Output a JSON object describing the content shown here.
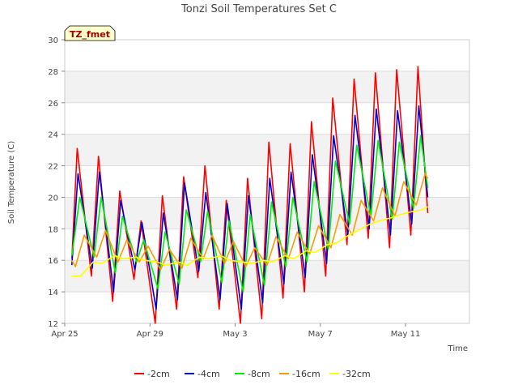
{
  "chart_data": {
    "type": "line",
    "title": "Tonzi Soil Temperatures Set C",
    "badge": "TZ_fmet",
    "xlabel": "Time",
    "ylabel": "Soil Temperature (C)",
    "ylim": [
      12,
      30
    ],
    "yticks": [
      12,
      14,
      16,
      18,
      20,
      22,
      24,
      26,
      28,
      30
    ],
    "xlim": [
      "2024-04-25",
      "2024-05-14"
    ],
    "xticks": [
      {
        "date": "2024-04-25",
        "label": "Apr 25"
      },
      {
        "date": "2024-04-29",
        "label": "Apr 29"
      },
      {
        "date": "2024-05-03",
        "label": "May 3"
      },
      {
        "date": "2024-05-07",
        "label": "May 7"
      },
      {
        "date": "2024-05-11",
        "label": "May 11"
      }
    ],
    "grid": "horizontal bands",
    "legend_position": "bottom",
    "series": [
      {
        "name": "-2cm",
        "color": "#ff0000",
        "points": [
          [
            "2024-04-25T08:00",
            16.1
          ],
          [
            "2024-04-25T14:00",
            23.1
          ],
          [
            "2024-04-26T06:00",
            15.0
          ],
          [
            "2024-04-26T14:00",
            22.6
          ],
          [
            "2024-04-27T06:00",
            13.4
          ],
          [
            "2024-04-27T14:00",
            20.4
          ],
          [
            "2024-04-28T06:00",
            14.8
          ],
          [
            "2024-04-28T14:00",
            18.5
          ],
          [
            "2024-04-29T06:00",
            12.0
          ],
          [
            "2024-04-29T14:00",
            20.1
          ],
          [
            "2024-04-30T06:00",
            12.9
          ],
          [
            "2024-04-30T14:00",
            21.3
          ],
          [
            "2024-05-01T06:00",
            14.9
          ],
          [
            "2024-05-01T14:00",
            22.0
          ],
          [
            "2024-05-02T06:00",
            12.9
          ],
          [
            "2024-05-02T14:00",
            19.8
          ],
          [
            "2024-05-03T06:00",
            12.0
          ],
          [
            "2024-05-03T14:00",
            21.2
          ],
          [
            "2024-05-04T06:00",
            12.3
          ],
          [
            "2024-05-04T14:00",
            23.5
          ],
          [
            "2024-05-05T06:00",
            13.6
          ],
          [
            "2024-05-05T14:00",
            23.4
          ],
          [
            "2024-05-06T06:00",
            14.0
          ],
          [
            "2024-05-06T14:00",
            24.8
          ],
          [
            "2024-05-07T06:00",
            15.0
          ],
          [
            "2024-05-07T14:00",
            26.3
          ],
          [
            "2024-05-08T06:00",
            17.0
          ],
          [
            "2024-05-08T14:00",
            27.5
          ],
          [
            "2024-05-09T06:00",
            17.4
          ],
          [
            "2024-05-09T14:00",
            27.9
          ],
          [
            "2024-05-10T06:00",
            16.8
          ],
          [
            "2024-05-10T14:00",
            28.1
          ],
          [
            "2024-05-11T06:00",
            17.6
          ],
          [
            "2024-05-11T14:00",
            28.3
          ],
          [
            "2024-05-12T01:00",
            19.0
          ]
        ]
      },
      {
        "name": "-4cm",
        "color": "#0000cc",
        "points": [
          [
            "2024-04-25T08:00",
            15.7
          ],
          [
            "2024-04-25T15:00",
            21.5
          ],
          [
            "2024-04-26T07:00",
            15.5
          ],
          [
            "2024-04-26T15:00",
            21.6
          ],
          [
            "2024-04-27T07:00",
            14.0
          ],
          [
            "2024-04-27T15:00",
            19.8
          ],
          [
            "2024-04-28T07:00",
            15.4
          ],
          [
            "2024-04-28T15:00",
            18.4
          ],
          [
            "2024-04-29T07:00",
            12.9
          ],
          [
            "2024-04-29T15:00",
            19.0
          ],
          [
            "2024-04-30T07:00",
            13.5
          ],
          [
            "2024-04-30T15:00",
            20.9
          ],
          [
            "2024-05-01T07:00",
            15.3
          ],
          [
            "2024-05-01T15:00",
            20.3
          ],
          [
            "2024-05-02T07:00",
            13.5
          ],
          [
            "2024-05-02T15:00",
            19.6
          ],
          [
            "2024-05-03T07:00",
            12.9
          ],
          [
            "2024-05-03T15:00",
            20.1
          ],
          [
            "2024-05-04T07:00",
            13.3
          ],
          [
            "2024-05-04T15:00",
            21.2
          ],
          [
            "2024-05-05T07:00",
            14.5
          ],
          [
            "2024-05-05T15:00",
            21.6
          ],
          [
            "2024-05-06T07:00",
            14.9
          ],
          [
            "2024-05-06T15:00",
            22.7
          ],
          [
            "2024-05-07T07:00",
            15.8
          ],
          [
            "2024-05-07T15:00",
            23.9
          ],
          [
            "2024-05-08T07:00",
            17.6
          ],
          [
            "2024-05-08T15:00",
            25.2
          ],
          [
            "2024-05-09T07:00",
            18.0
          ],
          [
            "2024-05-09T15:00",
            25.6
          ],
          [
            "2024-05-10T07:00",
            17.6
          ],
          [
            "2024-05-10T15:00",
            25.5
          ],
          [
            "2024-05-11T07:00",
            18.3
          ],
          [
            "2024-05-11T15:00",
            25.8
          ],
          [
            "2024-05-12T01:00",
            20.0
          ]
        ]
      },
      {
        "name": "-8cm",
        "color": "#00ee00",
        "points": [
          [
            "2024-04-25T08:00",
            16.3
          ],
          [
            "2024-04-25T17:00",
            20.0
          ],
          [
            "2024-04-26T09:00",
            16.2
          ],
          [
            "2024-04-26T17:00",
            20.0
          ],
          [
            "2024-04-27T09:00",
            15.2
          ],
          [
            "2024-04-27T17:00",
            18.8
          ],
          [
            "2024-04-28T09:00",
            15.9
          ],
          [
            "2024-04-28T17:00",
            17.3
          ],
          [
            "2024-04-29T09:00",
            14.2
          ],
          [
            "2024-04-29T17:00",
            17.8
          ],
          [
            "2024-04-30T09:00",
            14.5
          ],
          [
            "2024-04-30T17:00",
            19.2
          ],
          [
            "2024-05-01T09:00",
            15.9
          ],
          [
            "2024-05-01T17:00",
            19.1
          ],
          [
            "2024-05-02T09:00",
            14.6
          ],
          [
            "2024-05-02T17:00",
            18.5
          ],
          [
            "2024-05-03T09:00",
            14.0
          ],
          [
            "2024-05-03T17:00",
            18.9
          ],
          [
            "2024-05-04T09:00",
            14.4
          ],
          [
            "2024-05-04T17:00",
            19.7
          ],
          [
            "2024-05-05T09:00",
            15.6
          ],
          [
            "2024-05-05T17:00",
            20.0
          ],
          [
            "2024-05-06T09:00",
            15.9
          ],
          [
            "2024-05-06T17:00",
            21.0
          ],
          [
            "2024-05-07T09:00",
            16.7
          ],
          [
            "2024-05-07T17:00",
            22.3
          ],
          [
            "2024-05-08T09:00",
            18.3
          ],
          [
            "2024-05-08T17:00",
            23.3
          ],
          [
            "2024-05-09T09:00",
            18.8
          ],
          [
            "2024-05-09T17:00",
            23.6
          ],
          [
            "2024-05-10T09:00",
            18.6
          ],
          [
            "2024-05-10T17:00",
            23.5
          ],
          [
            "2024-05-11T09:00",
            19.3
          ],
          [
            "2024-05-11T17:00",
            23.9
          ],
          [
            "2024-05-12T01:00",
            20.6
          ]
        ]
      },
      {
        "name": "-16cm",
        "color": "#ff9900",
        "points": [
          [
            "2024-04-25T08:00",
            16.0
          ],
          [
            "2024-04-25T12:00",
            15.6
          ],
          [
            "2024-04-25T22:00",
            17.6
          ],
          [
            "2024-04-26T12:00",
            16.2
          ],
          [
            "2024-04-26T22:00",
            17.9
          ],
          [
            "2024-04-27T12:00",
            15.9
          ],
          [
            "2024-04-27T22:00",
            17.3
          ],
          [
            "2024-04-28T12:00",
            15.9
          ],
          [
            "2024-04-28T22:00",
            16.9
          ],
          [
            "2024-04-29T12:00",
            15.4
          ],
          [
            "2024-04-29T22:00",
            16.7
          ],
          [
            "2024-04-30T12:00",
            15.5
          ],
          [
            "2024-04-30T22:00",
            17.4
          ],
          [
            "2024-05-01T12:00",
            16.1
          ],
          [
            "2024-05-01T22:00",
            17.6
          ],
          [
            "2024-05-02T12:00",
            15.8
          ],
          [
            "2024-05-02T22:00",
            17.2
          ],
          [
            "2024-05-03T12:00",
            15.6
          ],
          [
            "2024-05-03T22:00",
            16.8
          ],
          [
            "2024-05-04T12:00",
            15.7
          ],
          [
            "2024-05-04T22:00",
            17.5
          ],
          [
            "2024-05-05T12:00",
            16.1
          ],
          [
            "2024-05-05T22:00",
            17.8
          ],
          [
            "2024-05-06T12:00",
            16.4
          ],
          [
            "2024-05-06T22:00",
            18.2
          ],
          [
            "2024-05-07T12:00",
            16.8
          ],
          [
            "2024-05-07T22:00",
            18.9
          ],
          [
            "2024-05-08T12:00",
            17.6
          ],
          [
            "2024-05-08T22:00",
            19.8
          ],
          [
            "2024-05-09T12:00",
            18.5
          ],
          [
            "2024-05-09T22:00",
            20.6
          ],
          [
            "2024-05-10T12:00",
            18.8
          ],
          [
            "2024-05-10T22:00",
            21.0
          ],
          [
            "2024-05-11T12:00",
            19.5
          ],
          [
            "2024-05-11T22:00",
            21.5
          ],
          [
            "2024-05-12T01:00",
            21.2
          ]
        ]
      },
      {
        "name": "-32cm",
        "color": "#ffff00",
        "points": [
          [
            "2024-04-25T08:00",
            15.0
          ],
          [
            "2024-04-25T18:00",
            15.0
          ],
          [
            "2024-04-26T08:00",
            15.9
          ],
          [
            "2024-04-26T18:00",
            15.8
          ],
          [
            "2024-04-27T08:00",
            16.3
          ],
          [
            "2024-04-27T18:00",
            16.1
          ],
          [
            "2024-04-28T08:00",
            16.2
          ],
          [
            "2024-04-28T18:00",
            16.0
          ],
          [
            "2024-04-29T08:00",
            15.9
          ],
          [
            "2024-04-29T18:00",
            15.7
          ],
          [
            "2024-04-30T08:00",
            15.9
          ],
          [
            "2024-04-30T18:00",
            15.7
          ],
          [
            "2024-05-01T08:00",
            16.2
          ],
          [
            "2024-05-01T18:00",
            16.1
          ],
          [
            "2024-05-02T08:00",
            16.3
          ],
          [
            "2024-05-02T18:00",
            16.0
          ],
          [
            "2024-05-03T08:00",
            15.9
          ],
          [
            "2024-05-03T18:00",
            15.8
          ],
          [
            "2024-05-04T08:00",
            16.0
          ],
          [
            "2024-05-04T18:00",
            15.9
          ],
          [
            "2024-05-05T08:00",
            16.3
          ],
          [
            "2024-05-05T18:00",
            16.1
          ],
          [
            "2024-05-06T08:00",
            16.6
          ],
          [
            "2024-05-06T18:00",
            16.5
          ],
          [
            "2024-05-07T08:00",
            17.0
          ],
          [
            "2024-05-07T18:00",
            17.1
          ],
          [
            "2024-05-08T08:00",
            17.6
          ],
          [
            "2024-05-08T18:00",
            17.9
          ],
          [
            "2024-05-09T08:00",
            18.3
          ],
          [
            "2024-05-09T18:00",
            18.5
          ],
          [
            "2024-05-10T08:00",
            18.7
          ],
          [
            "2024-05-10T18:00",
            18.9
          ],
          [
            "2024-05-11T08:00",
            19.1
          ],
          [
            "2024-05-11T18:00",
            19.2
          ],
          [
            "2024-05-12T01:00",
            19.4
          ]
        ]
      }
    ]
  }
}
